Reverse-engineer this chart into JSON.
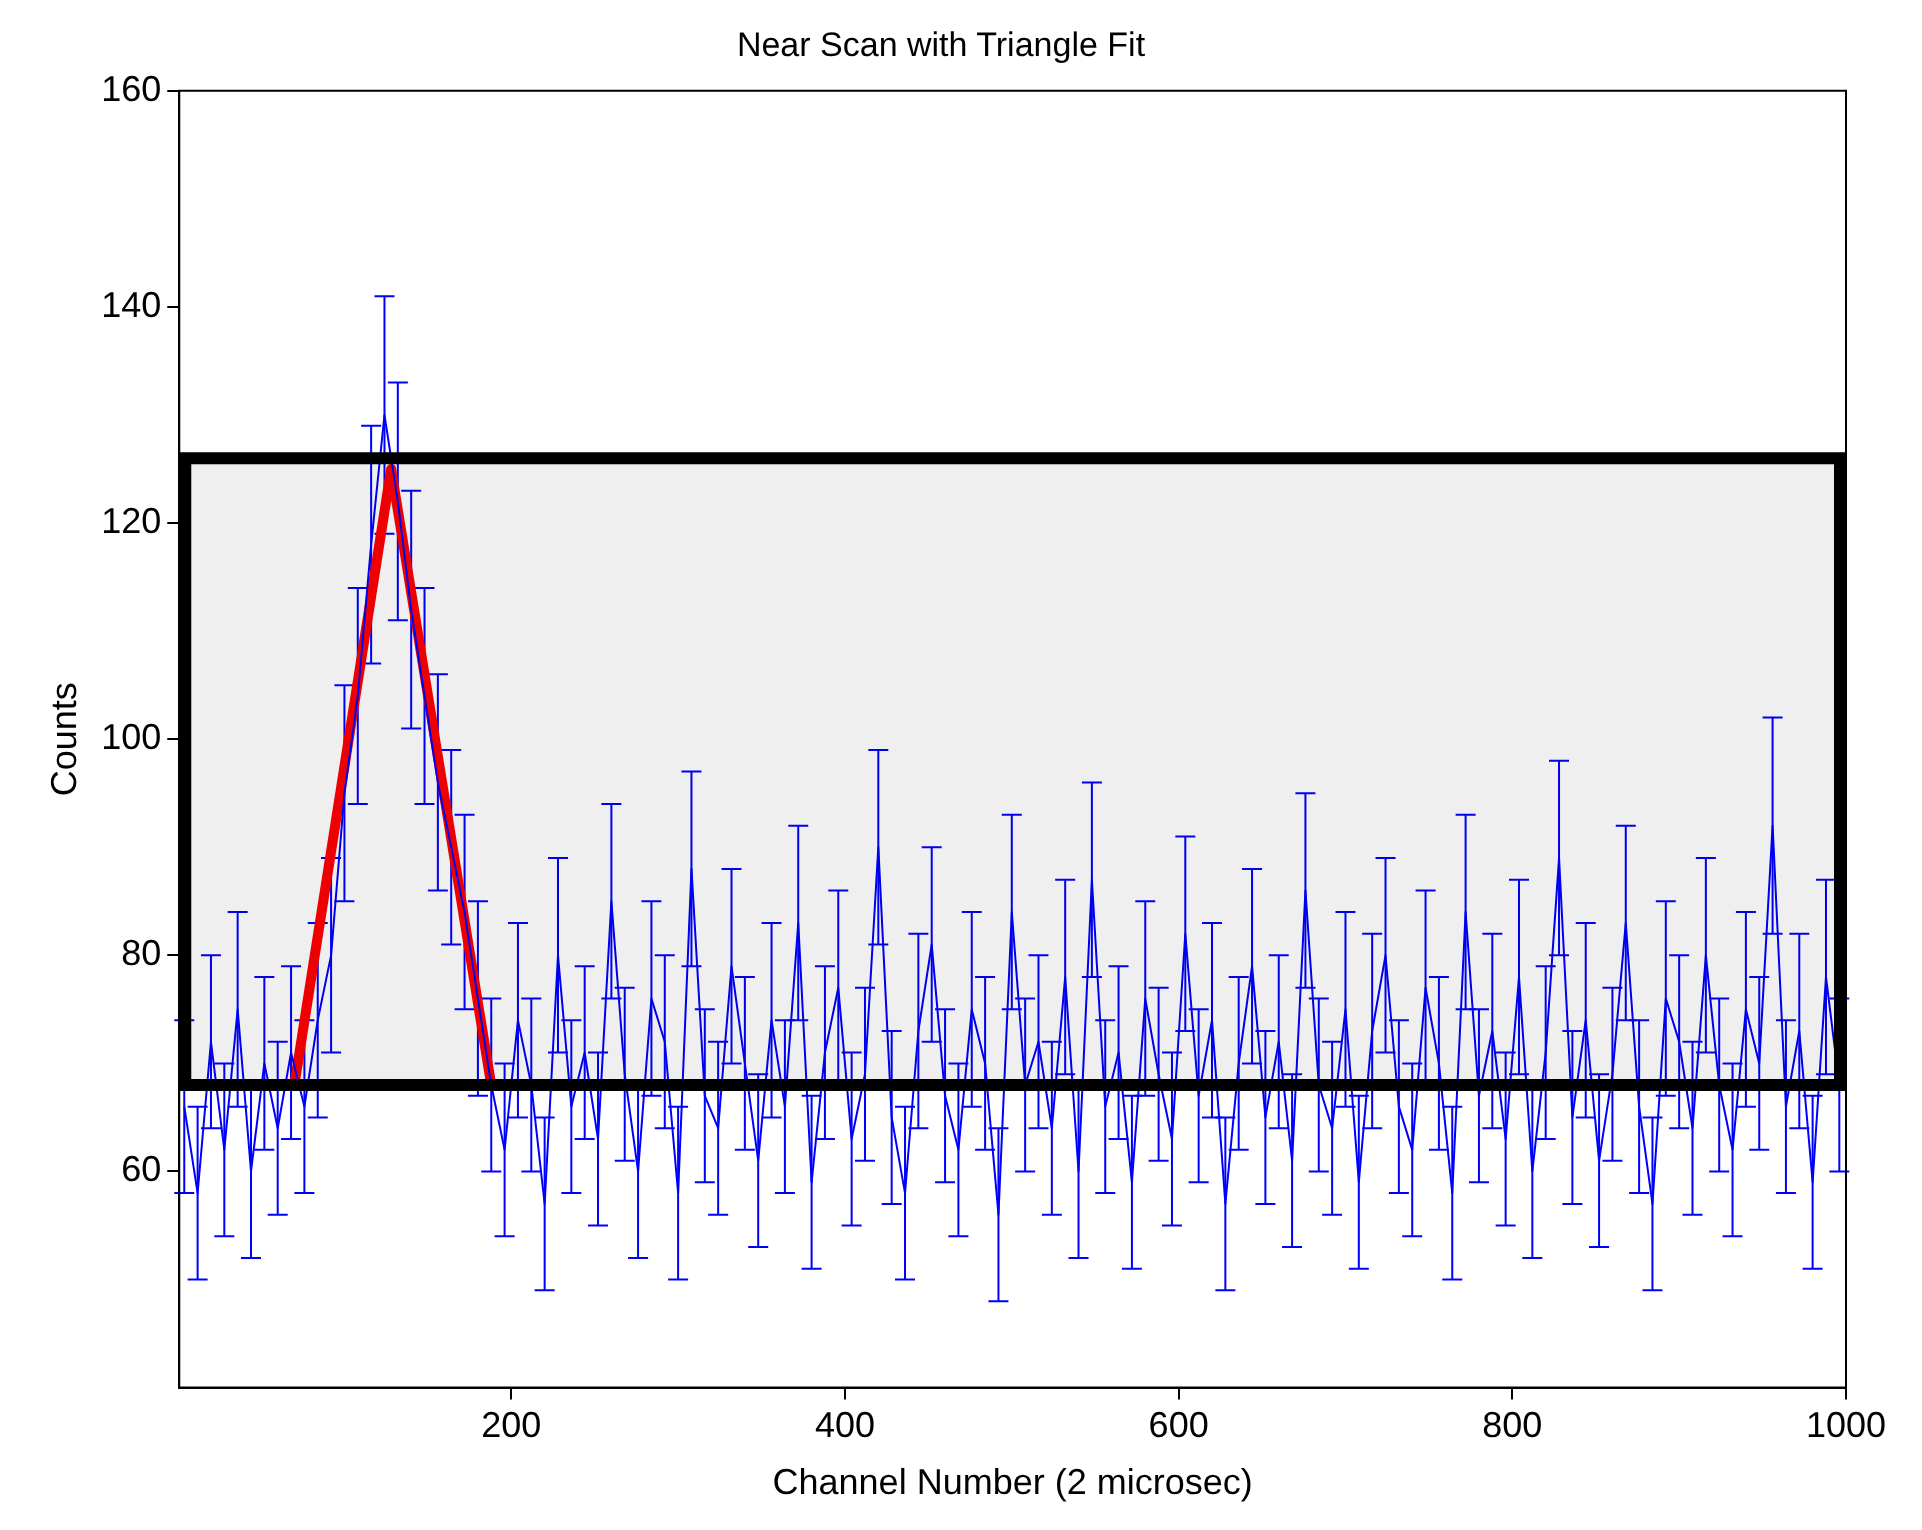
{
  "chart_data": {
    "type": "line",
    "title": "Near Scan with Triangle Fit",
    "xlabel": "Channel Number (2 microsec)",
    "ylabel": "Counts",
    "xlim": [
      1,
      1000
    ],
    "xticks": [
      200,
      400,
      600,
      800,
      1000
    ],
    "ylim": [
      40,
      160
    ],
    "yticks": [
      60,
      80,
      100,
      120,
      140,
      160
    ],
    "grid": false,
    "marker": "none",
    "bands": [
      {
        "axis": "y",
        "from": 68,
        "to": 126,
        "color": "#000000"
      }
    ],
    "series": [
      {
        "color": "#0000ff",
        "x": [
          4,
          12,
          20,
          28,
          36,
          44,
          52,
          60,
          68,
          76,
          84,
          92,
          100,
          108,
          116,
          124,
          132,
          140,
          148,
          156,
          164,
          172,
          180,
          188,
          196,
          204,
          212,
          220,
          228,
          236,
          244,
          252,
          260,
          268,
          276,
          284,
          292,
          300,
          308,
          316,
          324,
          332,
          340,
          348,
          356,
          364,
          372,
          380,
          388,
          396,
          404,
          412,
          420,
          428,
          436,
          444,
          452,
          460,
          468,
          476,
          484,
          492,
          500,
          508,
          516,
          524,
          532,
          540,
          548,
          556,
          564,
          572,
          580,
          588,
          596,
          604,
          612,
          620,
          628,
          636,
          644,
          652,
          660,
          668,
          676,
          684,
          692,
          700,
          708,
          716,
          724,
          732,
          740,
          748,
          756,
          764,
          772,
          780,
          788,
          796,
          804,
          812,
          820,
          828,
          836,
          844,
          852,
          860,
          868,
          876,
          884,
          892,
          900,
          908,
          916,
          924,
          932,
          940,
          948,
          956,
          964,
          972,
          980,
          988,
          996
        ],
        "values": [
          66,
          58,
          72,
          62,
          75,
          60,
          70,
          64,
          71,
          66,
          74,
          80,
          95,
          104,
          118,
          130,
          122,
          112,
          104,
          96,
          90,
          84,
          76,
          68,
          62,
          74,
          68,
          57,
          80,
          66,
          71,
          63,
          85,
          69,
          60,
          76,
          72,
          58,
          88,
          67,
          64,
          79,
          70,
          61,
          74,
          66,
          83,
          59,
          71,
          77,
          63,
          69,
          90,
          65,
          58,
          73,
          81,
          67,
          62,
          75,
          70,
          56,
          84,
          68,
          72,
          64,
          78,
          60,
          87,
          66,
          71,
          59,
          76,
          69,
          63,
          82,
          67,
          74,
          57,
          70,
          79,
          65,
          72,
          61,
          86,
          68,
          64,
          75,
          59,
          73,
          80,
          66,
          62,
          77,
          70,
          58,
          84,
          67,
          73,
          63,
          78,
          60,
          71,
          89,
          65,
          74,
          61,
          69,
          83,
          66,
          57,
          76,
          72,
          64,
          80,
          68,
          62,
          75,
          70,
          92,
          66,
          73,
          59,
          78,
          68
        ],
        "errors": [
          8,
          8,
          8,
          8,
          9,
          8,
          8,
          8,
          8,
          8,
          9,
          9,
          10,
          10,
          11,
          11,
          11,
          11,
          10,
          10,
          9,
          9,
          9,
          8,
          8,
          9,
          8,
          8,
          9,
          8,
          8,
          8,
          9,
          8,
          8,
          9,
          8,
          8,
          9,
          8,
          8,
          9,
          8,
          8,
          9,
          8,
          9,
          8,
          8,
          9,
          8,
          8,
          9,
          8,
          8,
          9,
          9,
          8,
          8,
          9,
          8,
          8,
          9,
          8,
          8,
          8,
          9,
          8,
          9,
          8,
          8,
          8,
          9,
          8,
          8,
          9,
          8,
          9,
          8,
          8,
          9,
          8,
          8,
          8,
          9,
          8,
          8,
          9,
          8,
          9,
          9,
          8,
          8,
          9,
          8,
          8,
          9,
          8,
          9,
          8,
          9,
          8,
          8,
          9,
          8,
          9,
          8,
          8,
          9,
          8,
          8,
          9,
          8,
          8,
          9,
          8,
          8,
          9,
          8,
          10,
          8,
          9,
          8,
          9,
          8
        ]
      },
      {
        "color": "#ff0000",
        "x": [
          70,
          128,
          188
        ],
        "values": [
          68,
          125,
          68
        ]
      }
    ]
  }
}
